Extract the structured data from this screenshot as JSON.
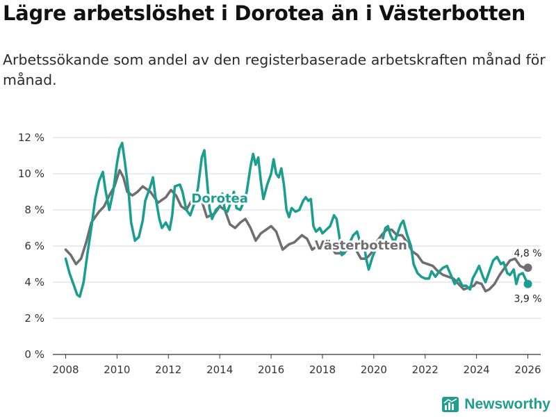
{
  "title": "Lägre arbetslöshet i Dorotea än i Västerbotten",
  "subtitle": "Arbetssökande som andel av den registerbaserade arbetskraften månad för månad.",
  "brand": "Newsworthy",
  "colors": {
    "dorotea": "#1a9e8f",
    "vasterbotten": "#6e6e73",
    "grid": "#d9d9d9",
    "axis": "#333333"
  },
  "chart_data": {
    "type": "line",
    "title": "Lägre arbetslöshet i Dorotea än i Västerbotten",
    "xlabel": "",
    "ylabel": "",
    "xlim": [
      2007.5,
      2026.5
    ],
    "ylim": [
      0,
      12
    ],
    "yticks": [
      0,
      2,
      4,
      6,
      8,
      10,
      12
    ],
    "ytick_labels": [
      "0 %",
      "2 %",
      "4 %",
      "6 %",
      "8 %",
      "10 %",
      "12 %"
    ],
    "xticks": [
      2008,
      2010,
      2012,
      2014,
      2016,
      2018,
      2020,
      2022,
      2024,
      2026
    ],
    "xtick_labels": [
      "2008",
      "2010",
      "2012",
      "2014",
      "2016",
      "2018",
      "2020",
      "2022",
      "2024",
      "2026"
    ],
    "grid": true,
    "series": [
      {
        "name": "Västerbotten",
        "end_label": "4,8 %",
        "points": [
          [
            2008.0,
            5.8
          ],
          [
            2008.2,
            5.5
          ],
          [
            2008.4,
            5.0
          ],
          [
            2008.6,
            5.3
          ],
          [
            2008.8,
            6.2
          ],
          [
            2009.0,
            7.3
          ],
          [
            2009.3,
            7.9
          ],
          [
            2009.5,
            8.2
          ],
          [
            2009.7,
            8.8
          ],
          [
            2009.9,
            9.3
          ],
          [
            2010.1,
            10.2
          ],
          [
            2010.25,
            9.8
          ],
          [
            2010.4,
            9.0
          ],
          [
            2010.6,
            8.8
          ],
          [
            2010.8,
            9.0
          ],
          [
            2011.0,
            9.3
          ],
          [
            2011.3,
            9.0
          ],
          [
            2011.6,
            8.4
          ],
          [
            2011.9,
            8.7
          ],
          [
            2012.1,
            9.1
          ],
          [
            2012.3,
            8.8
          ],
          [
            2012.5,
            8.2
          ],
          [
            2012.7,
            8.0
          ],
          [
            2012.9,
            8.5
          ],
          [
            2013.1,
            8.9
          ],
          [
            2013.3,
            8.5
          ],
          [
            2013.5,
            7.6
          ],
          [
            2013.8,
            7.8
          ],
          [
            2014.0,
            8.2
          ],
          [
            2014.2,
            8.0
          ],
          [
            2014.4,
            7.2
          ],
          [
            2014.6,
            7.0
          ],
          [
            2014.8,
            7.3
          ],
          [
            2015.0,
            7.5
          ],
          [
            2015.2,
            7.0
          ],
          [
            2015.4,
            6.3
          ],
          [
            2015.6,
            6.7
          ],
          [
            2015.8,
            6.9
          ],
          [
            2016.0,
            7.1
          ],
          [
            2016.2,
            6.8
          ],
          [
            2016.45,
            5.8
          ],
          [
            2016.7,
            6.1
          ],
          [
            2016.9,
            6.2
          ],
          [
            2017.2,
            6.6
          ],
          [
            2017.4,
            6.4
          ],
          [
            2017.6,
            5.8
          ],
          [
            2017.8,
            6.0
          ],
          [
            2018.0,
            6.2
          ],
          [
            2018.3,
            6.1
          ],
          [
            2018.5,
            5.6
          ],
          [
            2018.7,
            5.6
          ],
          [
            2018.9,
            5.8
          ],
          [
            2019.1,
            6.1
          ],
          [
            2019.3,
            5.8
          ],
          [
            2019.5,
            5.3
          ],
          [
            2019.7,
            5.3
          ],
          [
            2019.9,
            5.6
          ],
          [
            2020.1,
            6.2
          ],
          [
            2020.3,
            6.6
          ],
          [
            2020.5,
            6.9
          ],
          [
            2020.7,
            6.9
          ],
          [
            2020.9,
            6.6
          ],
          [
            2021.1,
            6.6
          ],
          [
            2021.3,
            6.2
          ],
          [
            2021.5,
            5.7
          ],
          [
            2021.7,
            5.5
          ],
          [
            2021.9,
            5.1
          ],
          [
            2022.1,
            5.0
          ],
          [
            2022.3,
            4.9
          ],
          [
            2022.5,
            4.6
          ],
          [
            2022.7,
            4.4
          ],
          [
            2022.9,
            4.3
          ],
          [
            2023.1,
            4.2
          ],
          [
            2023.3,
            3.9
          ],
          [
            2023.5,
            3.6
          ],
          [
            2023.7,
            3.7
          ],
          [
            2023.9,
            3.8
          ],
          [
            2024.0,
            4.0
          ],
          [
            2024.2,
            3.9
          ],
          [
            2024.35,
            3.5
          ],
          [
            2024.5,
            3.6
          ],
          [
            2024.7,
            3.9
          ],
          [
            2024.9,
            4.4
          ],
          [
            2025.1,
            4.8
          ],
          [
            2025.3,
            5.2
          ],
          [
            2025.5,
            5.3
          ],
          [
            2025.7,
            4.9
          ],
          [
            2025.85,
            4.8
          ],
          [
            2026.0,
            4.8
          ]
        ]
      },
      {
        "name": "Dorotea",
        "end_label": "3,9 %",
        "points": [
          [
            2008.0,
            5.3
          ],
          [
            2008.15,
            4.5
          ],
          [
            2008.3,
            3.9
          ],
          [
            2008.45,
            3.3
          ],
          [
            2008.55,
            3.2
          ],
          [
            2008.7,
            4.0
          ],
          [
            2008.85,
            5.6
          ],
          [
            2009.0,
            7.0
          ],
          [
            2009.15,
            8.6
          ],
          [
            2009.3,
            9.6
          ],
          [
            2009.45,
            10.1
          ],
          [
            2009.55,
            9.1
          ],
          [
            2009.7,
            8.0
          ],
          [
            2009.85,
            9.0
          ],
          [
            2010.0,
            10.6
          ],
          [
            2010.1,
            11.4
          ],
          [
            2010.2,
            11.7
          ],
          [
            2010.3,
            10.7
          ],
          [
            2010.45,
            9.0
          ],
          [
            2010.55,
            7.3
          ],
          [
            2010.7,
            6.3
          ],
          [
            2010.85,
            6.5
          ],
          [
            2011.0,
            7.4
          ],
          [
            2011.1,
            8.5
          ],
          [
            2011.3,
            9.3
          ],
          [
            2011.4,
            9.8
          ],
          [
            2011.5,
            8.7
          ],
          [
            2011.65,
            7.5
          ],
          [
            2011.75,
            7.0
          ],
          [
            2011.9,
            7.3
          ],
          [
            2012.05,
            6.9
          ],
          [
            2012.15,
            7.7
          ],
          [
            2012.25,
            9.3
          ],
          [
            2012.45,
            9.4
          ],
          [
            2012.55,
            9.0
          ],
          [
            2012.7,
            8.0
          ],
          [
            2012.85,
            7.7
          ],
          [
            2013.0,
            8.3
          ],
          [
            2013.15,
            9.2
          ],
          [
            2013.3,
            10.9
          ],
          [
            2013.4,
            11.3
          ],
          [
            2013.5,
            9.7
          ],
          [
            2013.6,
            8.1
          ],
          [
            2013.7,
            7.5
          ],
          [
            2013.85,
            8.0
          ],
          [
            2014.0,
            8.2
          ],
          [
            2014.1,
            8.9
          ],
          [
            2014.2,
            8.0
          ],
          [
            2014.3,
            7.9
          ],
          [
            2014.45,
            8.5
          ],
          [
            2014.55,
            9.0
          ],
          [
            2014.65,
            8.1
          ],
          [
            2014.8,
            8.0
          ],
          [
            2014.95,
            8.5
          ],
          [
            2015.05,
            9.0
          ],
          [
            2015.2,
            10.4
          ],
          [
            2015.3,
            11.1
          ],
          [
            2015.4,
            10.5
          ],
          [
            2015.5,
            10.9
          ],
          [
            2015.6,
            9.6
          ],
          [
            2015.7,
            8.6
          ],
          [
            2015.85,
            9.4
          ],
          [
            2016.0,
            10.0
          ],
          [
            2016.1,
            10.8
          ],
          [
            2016.2,
            10.0
          ],
          [
            2016.3,
            9.8
          ],
          [
            2016.4,
            10.3
          ],
          [
            2016.5,
            9.4
          ],
          [
            2016.6,
            8.0
          ],
          [
            2016.7,
            7.6
          ],
          [
            2016.8,
            8.1
          ],
          [
            2016.95,
            7.9
          ],
          [
            2017.1,
            8.0
          ],
          [
            2017.25,
            8.5
          ],
          [
            2017.35,
            8.7
          ],
          [
            2017.45,
            8.5
          ],
          [
            2017.55,
            8.6
          ],
          [
            2017.65,
            7.1
          ],
          [
            2017.75,
            6.8
          ],
          [
            2017.9,
            7.0
          ],
          [
            2018.0,
            6.7
          ],
          [
            2018.15,
            6.9
          ],
          [
            2018.3,
            7.1
          ],
          [
            2018.45,
            7.7
          ],
          [
            2018.55,
            7.5
          ],
          [
            2018.65,
            6.6
          ],
          [
            2018.75,
            5.5
          ],
          [
            2018.85,
            5.6
          ],
          [
            2018.95,
            5.8
          ],
          [
            2019.1,
            6.3
          ],
          [
            2019.2,
            6.6
          ],
          [
            2019.35,
            6.8
          ],
          [
            2019.45,
            6.3
          ],
          [
            2019.6,
            6.3
          ],
          [
            2019.7,
            5.3
          ],
          [
            2019.8,
            4.7
          ],
          [
            2019.95,
            5.4
          ],
          [
            2020.1,
            5.9
          ],
          [
            2020.2,
            6.2
          ],
          [
            2020.35,
            6.4
          ],
          [
            2020.45,
            7.0
          ],
          [
            2020.55,
            7.1
          ],
          [
            2020.65,
            6.6
          ],
          [
            2020.8,
            6.2
          ],
          [
            2020.9,
            6.6
          ],
          [
            2021.05,
            7.2
          ],
          [
            2021.15,
            7.4
          ],
          [
            2021.3,
            6.6
          ],
          [
            2021.45,
            6.0
          ],
          [
            2021.55,
            5.0
          ],
          [
            2021.7,
            4.5
          ],
          [
            2021.85,
            4.3
          ],
          [
            2022.0,
            4.2
          ],
          [
            2022.15,
            4.2
          ],
          [
            2022.25,
            4.6
          ],
          [
            2022.4,
            4.3
          ],
          [
            2022.55,
            4.6
          ],
          [
            2022.7,
            4.8
          ],
          [
            2022.85,
            4.9
          ],
          [
            2023.0,
            4.4
          ],
          [
            2023.15,
            3.9
          ],
          [
            2023.3,
            4.2
          ],
          [
            2023.45,
            3.8
          ],
          [
            2023.6,
            3.8
          ],
          [
            2023.75,
            3.6
          ],
          [
            2023.85,
            4.2
          ],
          [
            2024.0,
            4.6
          ],
          [
            2024.1,
            4.9
          ],
          [
            2024.25,
            4.3
          ],
          [
            2024.35,
            4.0
          ],
          [
            2024.5,
            4.6
          ],
          [
            2024.65,
            5.2
          ],
          [
            2024.8,
            5.4
          ],
          [
            2024.95,
            5.0
          ],
          [
            2025.05,
            5.1
          ],
          [
            2025.2,
            4.5
          ],
          [
            2025.3,
            4.4
          ],
          [
            2025.45,
            4.7
          ],
          [
            2025.55,
            3.9
          ],
          [
            2025.65,
            4.4
          ],
          [
            2025.8,
            4.5
          ],
          [
            2025.9,
            4.2
          ],
          [
            2026.0,
            3.9
          ]
        ]
      }
    ]
  }
}
